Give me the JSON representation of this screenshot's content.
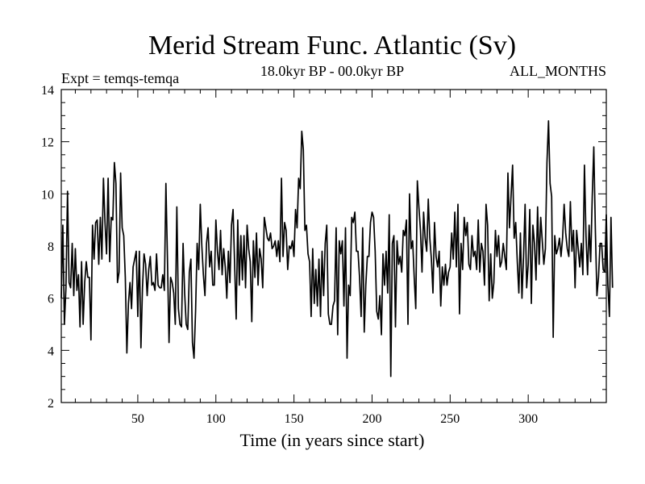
{
  "chart_data": {
    "type": "line",
    "title": "Merid Stream Func. Atlantic (Sv)",
    "subtitle_left": "Expt = temqs-temqa",
    "subtitle_center": "18.0kyr BP - 00.0kyr BP",
    "subtitle_right": "ALL_MONTHS",
    "xlabel": "Time (in years since start)",
    "ylabel": "",
    "xlim": [
      1,
      350
    ],
    "ylim": [
      2,
      14
    ],
    "xticks_major": [
      50,
      100,
      150,
      200,
      250,
      300
    ],
    "yticks_major": [
      2,
      4,
      6,
      8,
      10,
      12,
      14
    ],
    "xticks_minor_step": 10,
    "yticks_minor_step": 0.5,
    "grid": false,
    "series": [
      {
        "name": "Merid Stream Func. Atlantic",
        "color": "#000000",
        "x_start": 1,
        "x_step": 1,
        "values": [
          6.0,
          8.8,
          5.0,
          6.4,
          10.1,
          6.6,
          6.4,
          8.1,
          6.1,
          7.9,
          6.3,
          6.9,
          4.9,
          7.4,
          5.0,
          6.6,
          7.4,
          6.8,
          6.8,
          4.4,
          8.8,
          7.5,
          8.9,
          9.0,
          7.3,
          9.1,
          7.5,
          10.6,
          8.9,
          7.7,
          10.6,
          7.4,
          9.1,
          9.0,
          11.2,
          10.4,
          6.6,
          7.0,
          10.8,
          8.7,
          8.4,
          6.8,
          3.9,
          5.8,
          6.6,
          5.6,
          7.2,
          7.5,
          7.8,
          5.3,
          7.8,
          4.1,
          6.4,
          7.7,
          7.3,
          6.1,
          7.1,
          7.6,
          6.5,
          6.6,
          6.3,
          7.7,
          6.5,
          6.4,
          6.4,
          6.9,
          6.3,
          10.4,
          7.5,
          4.3,
          6.8,
          6.6,
          6.2,
          5.0,
          9.5,
          5.6,
          5.0,
          4.9,
          8.1,
          6.2,
          5.0,
          4.8,
          7.0,
          7.5,
          4.3,
          3.7,
          5.5,
          8.1,
          7.1,
          9.6,
          8.0,
          6.9,
          6.1,
          8.1,
          8.7,
          7.2,
          7.8,
          6.5,
          6.5,
          9.0,
          7.8,
          7.1,
          8.6,
          6.9,
          7.9,
          7.2,
          6.0,
          7.8,
          6.6,
          8.8,
          9.4,
          7.3,
          5.2,
          9.0,
          6.5,
          8.4,
          6.7,
          8.4,
          6.4,
          8.8,
          7.9,
          7.4,
          5.1,
          8.2,
          6.8,
          8.5,
          6.5,
          7.9,
          7.5,
          6.4,
          9.1,
          8.7,
          8.3,
          8.2,
          8.5,
          7.9,
          8.0,
          8.2,
          7.6,
          8.2,
          7.4,
          10.6,
          7.6,
          8.9,
          8.6,
          7.1,
          8.0,
          7.9,
          8.2,
          7.6,
          9.4,
          8.7,
          10.6,
          10.2,
          12.4,
          11.7,
          8.6,
          8.8,
          7.7,
          7.4,
          5.3,
          7.9,
          5.8,
          7.1,
          5.7,
          7.5,
          5.3,
          7.8,
          6.1,
          8.1,
          8.8,
          5.4,
          5.0,
          5.0,
          5.7,
          5.9,
          8.7,
          4.6,
          8.2,
          7.7,
          8.2,
          5.7,
          8.7,
          3.7,
          6.5,
          6.1,
          9.1,
          8.9,
          9.3,
          7.8,
          7.8,
          6.8,
          5.3,
          8.7,
          4.7,
          6.5,
          7.6,
          7.6,
          8.9,
          9.3,
          9.1,
          7.8,
          5.5,
          5.2,
          6.1,
          4.6,
          7.7,
          6.5,
          7.8,
          6.2,
          9.2,
          3.0,
          8.1,
          8.4,
          4.9,
          8.2,
          7.3,
          7.6,
          7.0,
          8.6,
          8.4,
          9.0,
          5.0,
          10.0,
          7.9,
          8.2,
          6.8,
          5.6,
          10.5,
          9.5,
          8.6,
          7.0,
          9.3,
          8.3,
          7.8,
          9.8,
          8.3,
          7.5,
          6.2,
          8.9,
          7.6,
          7.2,
          7.8,
          5.7,
          7.2,
          6.5,
          7.3,
          6.5,
          7.0,
          7.2,
          8.5,
          7.5,
          9.3,
          7.2,
          9.6,
          5.4,
          8.1,
          7.1,
          9.1,
          8.4,
          8.9,
          7.3,
          7.1,
          8.4,
          7.6,
          7.8,
          7.1,
          9.0,
          7.0,
          8.1,
          7.8,
          6.5,
          9.6,
          8.8,
          5.9,
          7.7,
          6.0,
          6.6,
          8.6,
          7.6,
          8.4,
          7.2,
          7.4,
          8.1,
          7.6,
          7.1,
          10.8,
          8.7,
          9.9,
          11.1,
          8.3,
          8.9,
          7.4,
          6.2,
          8.5,
          6.0,
          7.6,
          9.6,
          6.4,
          7.3,
          9.4,
          5.8,
          8.8,
          8.1,
          6.7,
          9.5,
          7.3,
          9.1,
          8.2,
          7.3,
          7.9,
          11.2,
          12.8,
          10.4,
          9.9,
          4.5,
          8.4,
          7.7,
          7.9,
          8.3,
          7.6,
          8.3,
          9.6,
          8.5,
          7.9,
          7.6,
          9.7,
          7.8,
          8.6,
          6.4,
          8.6,
          7.9,
          7.2,
          8.1,
          6.9,
          11.1,
          8.4,
          6.9,
          8.8,
          7.4,
          9.9,
          11.8,
          8.6,
          6.1,
          6.8,
          8.1,
          8.1,
          7.1,
          7.0,
          9.2,
          6.5,
          5.3,
          9.1,
          6.4
        ]
      }
    ]
  }
}
